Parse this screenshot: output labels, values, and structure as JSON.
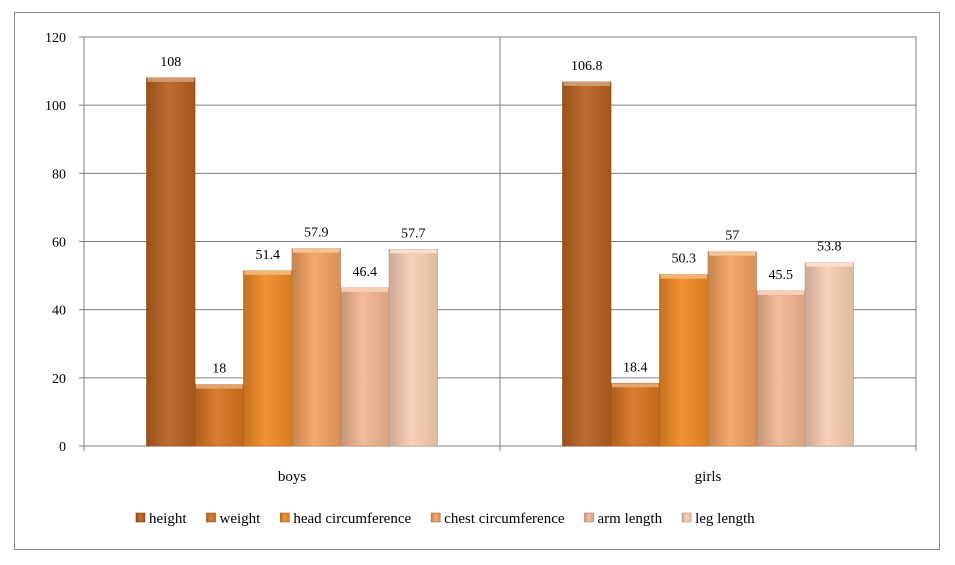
{
  "chart_data": {
    "type": "bar",
    "categories": [
      "boys",
      "girls"
    ],
    "series": [
      {
        "name": "height",
        "values": [
          108,
          106.8
        ],
        "color": "#b8601e"
      },
      {
        "name": "weight",
        "values": [
          18,
          18.4
        ],
        "color": "#d6731f"
      },
      {
        "name": "head circumference",
        "values": [
          51.4,
          50.3
        ],
        "color": "#f08a24"
      },
      {
        "name": "chest circumference",
        "values": [
          57.9,
          57
        ],
        "color": "#f2a05e"
      },
      {
        "name": "arm length",
        "values": [
          46.4,
          45.5
        ],
        "color": "#f2b58e"
      },
      {
        "name": "leg length",
        "values": [
          57.7,
          53.8
        ],
        "color": "#f7cdb4"
      }
    ],
    "data_labels": [
      [
        "108",
        "106.8"
      ],
      [
        "18",
        "18.4"
      ],
      [
        "51.4",
        "50.3"
      ],
      [
        "57.9",
        "57"
      ],
      [
        "46.4",
        "45.5"
      ],
      [
        "57.7",
        "53.8"
      ]
    ],
    "yticks": [
      "0",
      "20",
      "40",
      "60",
      "80",
      "100",
      "120"
    ],
    "ylim": [
      0,
      120
    ],
    "grid": true,
    "legend_position": "bottom",
    "title": "",
    "xlabel": "",
    "ylabel": ""
  }
}
